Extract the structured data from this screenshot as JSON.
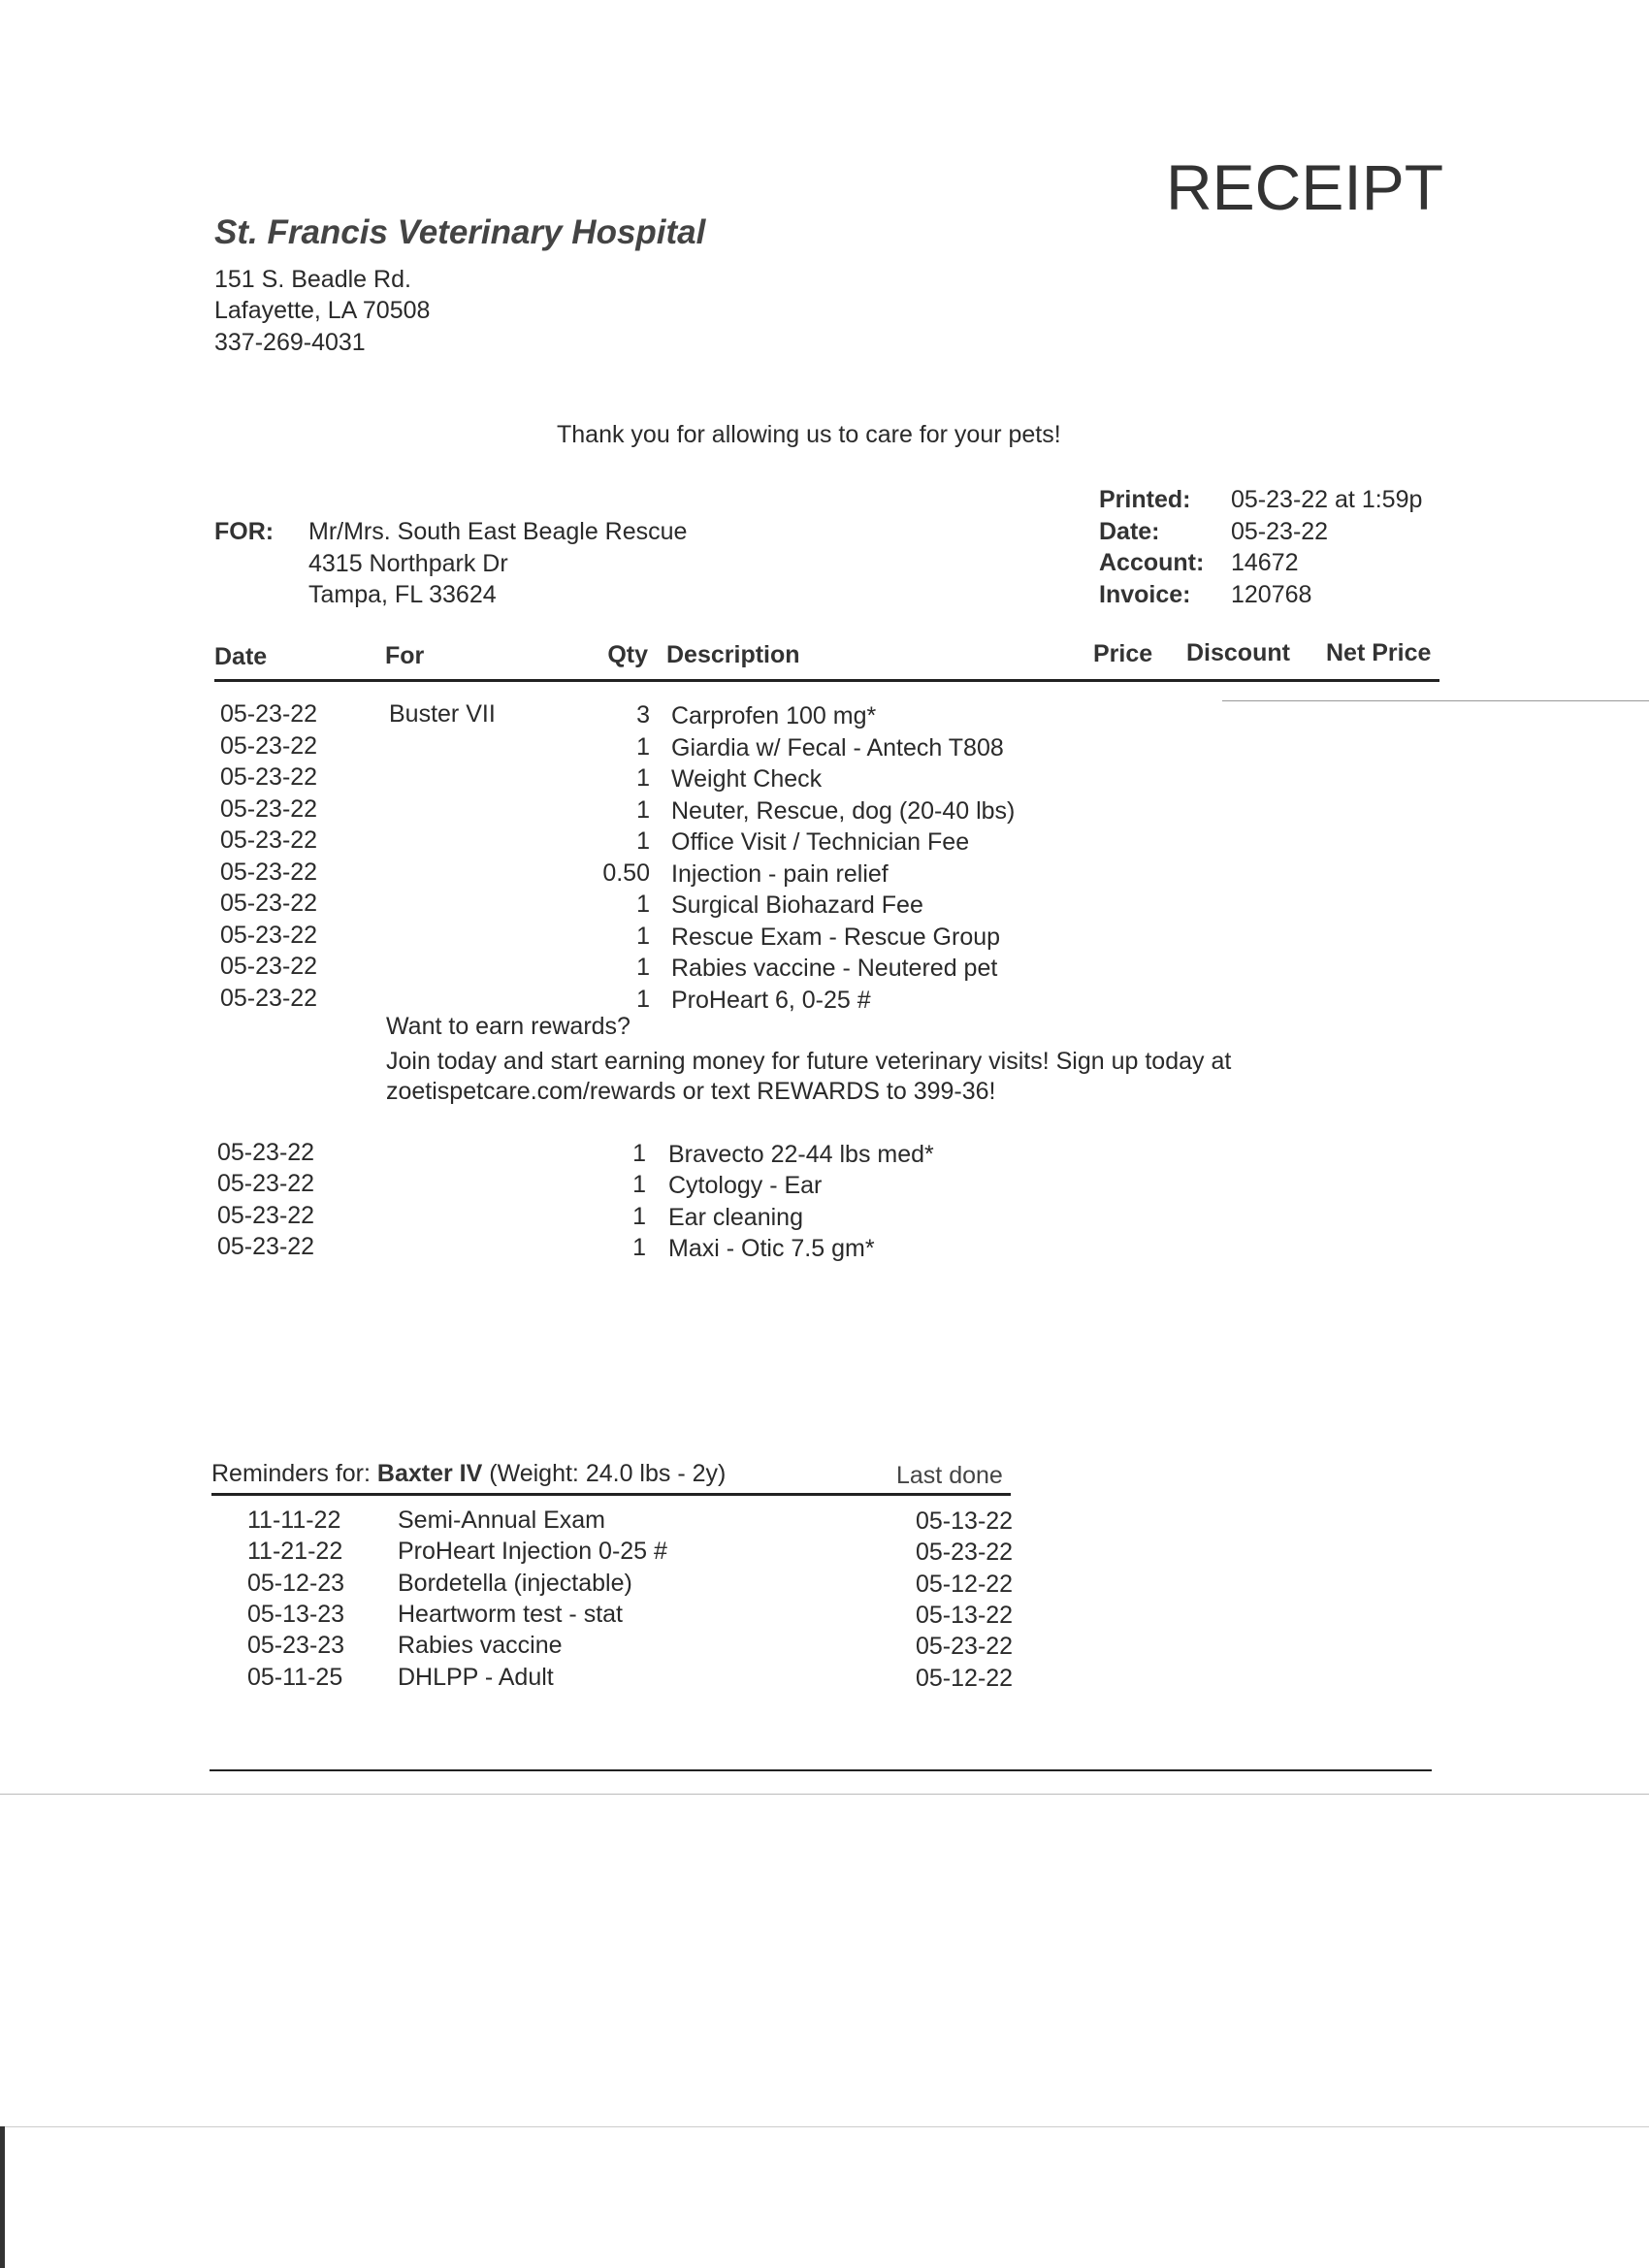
{
  "title": "RECEIPT",
  "hospital": {
    "name": "St. Francis Veterinary Hospital",
    "address1": "151 S. Beadle Rd.",
    "address2": "Lafayette, LA  70508",
    "phone": "337-269-4031"
  },
  "thanks": "Thank you for allowing us to care for your pets!",
  "client": {
    "label": "FOR:",
    "name": "Mr/Mrs. South East Beagle Rescue",
    "address1": "4315 Northpark Dr",
    "address2": "Tampa, FL  33624"
  },
  "meta": [
    {
      "label": "Printed:",
      "value": "05-23-22 at 1:59p"
    },
    {
      "label": "Date:",
      "value": "05-23-22"
    },
    {
      "label": "Account:",
      "value": "14672"
    },
    {
      "label": "Invoice:",
      "value": "120768"
    }
  ],
  "columns": {
    "date": "Date",
    "for": "For",
    "qty": "Qty",
    "description": "Description",
    "price": "Price",
    "discount": "Discount",
    "net_price": "Net Price"
  },
  "items": [
    {
      "date": "05-23-22",
      "for": "Buster VII",
      "qty": "3",
      "description": "Carprofen 100 mg*"
    },
    {
      "date": "05-23-22",
      "for": "",
      "qty": "1",
      "description": "Giardia w/ Fecal - Antech T808"
    },
    {
      "date": "05-23-22",
      "for": "",
      "qty": "1",
      "description": "Weight Check"
    },
    {
      "date": "05-23-22",
      "for": "",
      "qty": "1",
      "description": "Neuter, Rescue, dog (20-40 lbs)"
    },
    {
      "date": "05-23-22",
      "for": "",
      "qty": "1",
      "description": "Office Visit / Technician Fee"
    },
    {
      "date": "05-23-22",
      "for": "",
      "qty": "0.50",
      "description": "Injection - pain relief"
    },
    {
      "date": "05-23-22",
      "for": "",
      "qty": "1",
      "description": "Surgical Biohazard Fee"
    },
    {
      "date": "05-23-22",
      "for": "",
      "qty": "1",
      "description": "Rescue Exam - Rescue Group"
    },
    {
      "date": "05-23-22",
      "for": "",
      "qty": "1",
      "description": "Rabies vaccine - Neutered pet"
    },
    {
      "date": "05-23-22",
      "for": "",
      "qty": "1",
      "description": "ProHeart 6, 0-25 #"
    }
  ],
  "rewards": [
    "Want to earn rewards?",
    "Join today and start earning money for future veterinary visits! Sign up today at",
    "zoetispetcare.com/rewards or text REWARDS to 399-36!"
  ],
  "items2": [
    {
      "date": "05-23-22",
      "qty": "1",
      "description": "Bravecto 22-44 lbs med*"
    },
    {
      "date": "05-23-22",
      "qty": "1",
      "description": "Cytology - Ear"
    },
    {
      "date": "05-23-22",
      "qty": "1",
      "description": "Ear cleaning"
    },
    {
      "date": "05-23-22",
      "qty": "1",
      "description": "Maxi - Otic 7.5 gm*"
    }
  ],
  "reminders": {
    "label": "Reminders for:",
    "pet": "Baxter IV",
    "weight": "(Weight: 24.0 lbs - 2y)",
    "last_done_label": "Last done",
    "rows": [
      {
        "due": "11-11-22",
        "description": "Semi-Annual Exam",
        "last": "05-13-22"
      },
      {
        "due": "11-21-22",
        "description": "ProHeart Injection 0-25 #",
        "last": "05-23-22"
      },
      {
        "due": "05-12-23",
        "description": "Bordetella (injectable)",
        "last": "05-12-22"
      },
      {
        "due": "05-13-23",
        "description": "Heartworm test - stat",
        "last": "05-13-22"
      },
      {
        "due": "05-23-23",
        "description": "Rabies vaccine",
        "last": "05-23-22"
      },
      {
        "due": "05-11-25",
        "description": "DHLPP - Adult",
        "last": "05-12-22"
      }
    ]
  }
}
